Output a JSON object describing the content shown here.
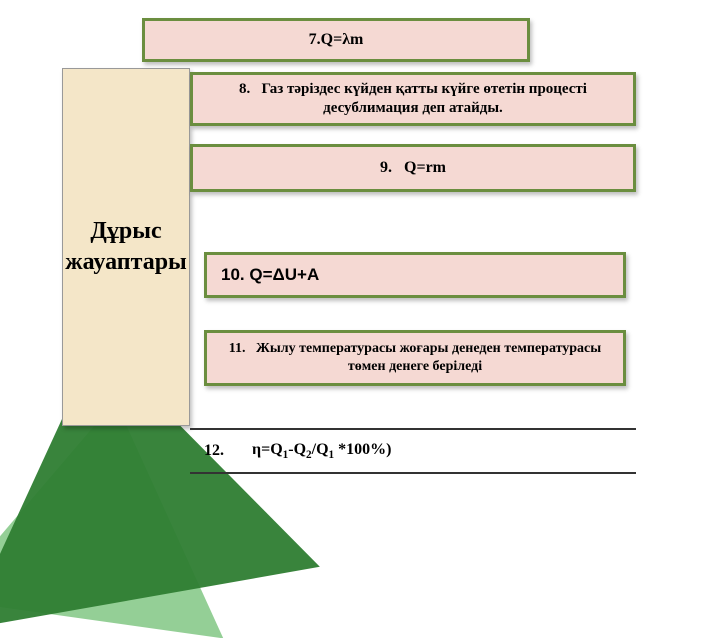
{
  "sidebar": {
    "title": "Дұрыс жауаптары"
  },
  "items": {
    "i7": {
      "num": "7.",
      "text": "Q=λm"
    },
    "i8": {
      "num": "8.",
      "text": "Газ тәріздес күйден қатты күйге өтетін процесті десублимация деп атайды."
    },
    "i9": {
      "num": "9.",
      "text": "Q=rm"
    },
    "i10": {
      "num": "10.",
      "text": "Q=ΔU+A"
    },
    "i11": {
      "num": "11.",
      "text": "Жылу температурасы жоғары денеден температурасы төмен денеге беріледі"
    },
    "i12": {
      "num": "12.",
      "formula_pre": "η=Q",
      "s1": "1",
      "mid1": "-Q",
      "s2": "2",
      "mid2": "/Q",
      "s3": "1",
      "post": " *100%)"
    }
  },
  "style": {
    "card_bg": "#f5d9d3",
    "card_border": "#6b8e3f",
    "sidebar_bg": "#f4e6c8",
    "accent_dark": "#2e7d32",
    "accent_light": "#81c784",
    "text_color": "#000000",
    "title_fontsize": 24,
    "item_fontsize": 16
  }
}
